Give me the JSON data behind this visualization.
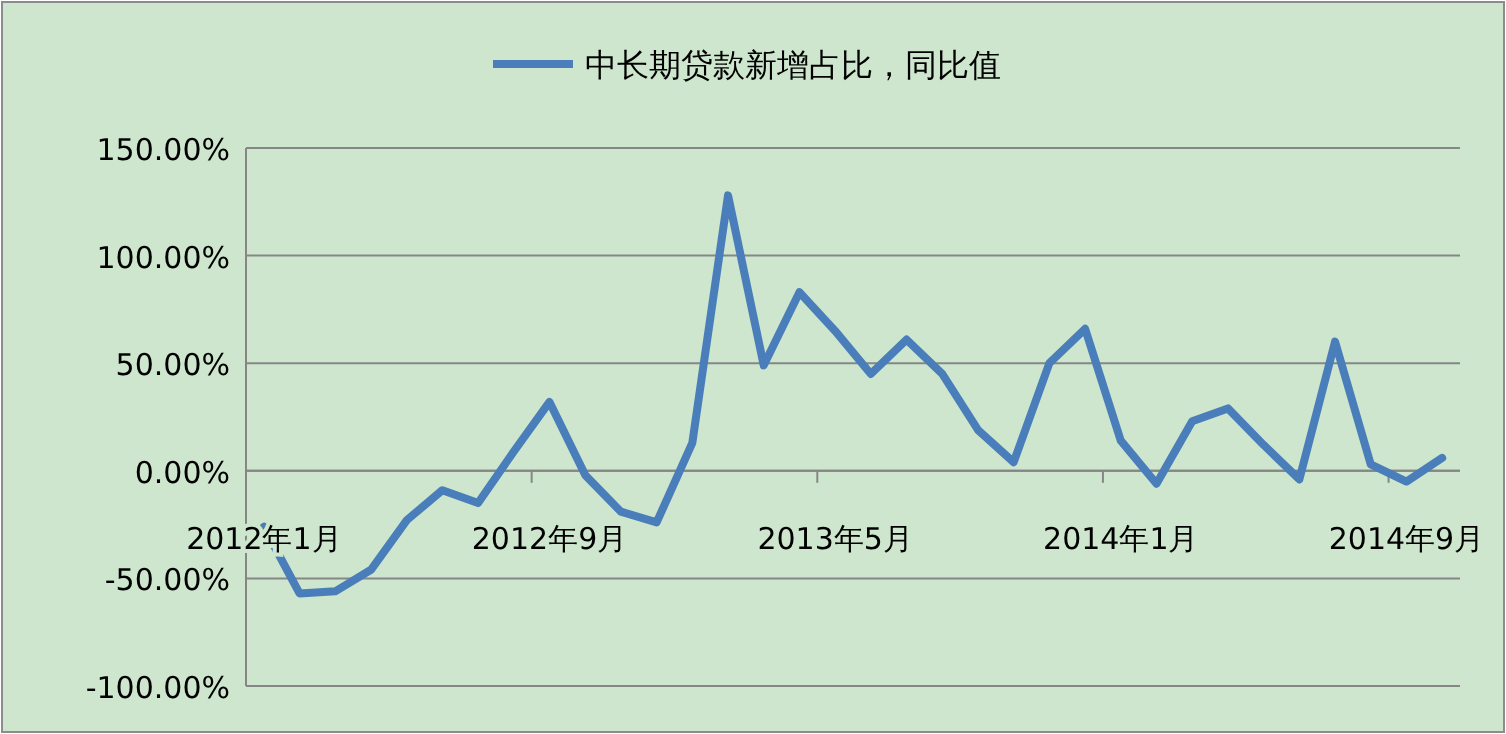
{
  "chart_data": {
    "type": "line",
    "legend": "top",
    "grid": "y",
    "marker": "none",
    "line_style": "solid",
    "categories": [
      "2012年1月",
      null,
      null,
      null,
      null,
      null,
      null,
      null,
      "2012年9月",
      null,
      null,
      null,
      null,
      null,
      null,
      null,
      "2013年5月",
      null,
      null,
      null,
      null,
      null,
      null,
      null,
      "2014年1月",
      null,
      null,
      null,
      null,
      null,
      null,
      null,
      "2014年9月",
      null
    ],
    "ylim": [
      -100,
      150
    ],
    "yticks": [
      {
        "value": -100,
        "label": "-100.00%"
      },
      {
        "value": -50,
        "label": "-50.00%"
      },
      {
        "value": 0,
        "label": "0.00%"
      },
      {
        "value": 50,
        "label": "50.00%"
      },
      {
        "value": 100,
        "label": "100.00%"
      },
      {
        "value": 150,
        "label": "150.00%"
      }
    ],
    "series": [
      {
        "name": "中长期贷款新增占比，同比值",
        "color": "#4a7ebb",
        "values": [
          -26,
          -57,
          -56,
          -46,
          -23,
          -9,
          -15,
          9,
          32,
          -2,
          -19,
          -24,
          13,
          128,
          49,
          83,
          65,
          45,
          61,
          45,
          19,
          4,
          50,
          66,
          14,
          -6,
          23,
          29,
          12,
          -4,
          60,
          3,
          -5,
          6
        ]
      }
    ]
  }
}
